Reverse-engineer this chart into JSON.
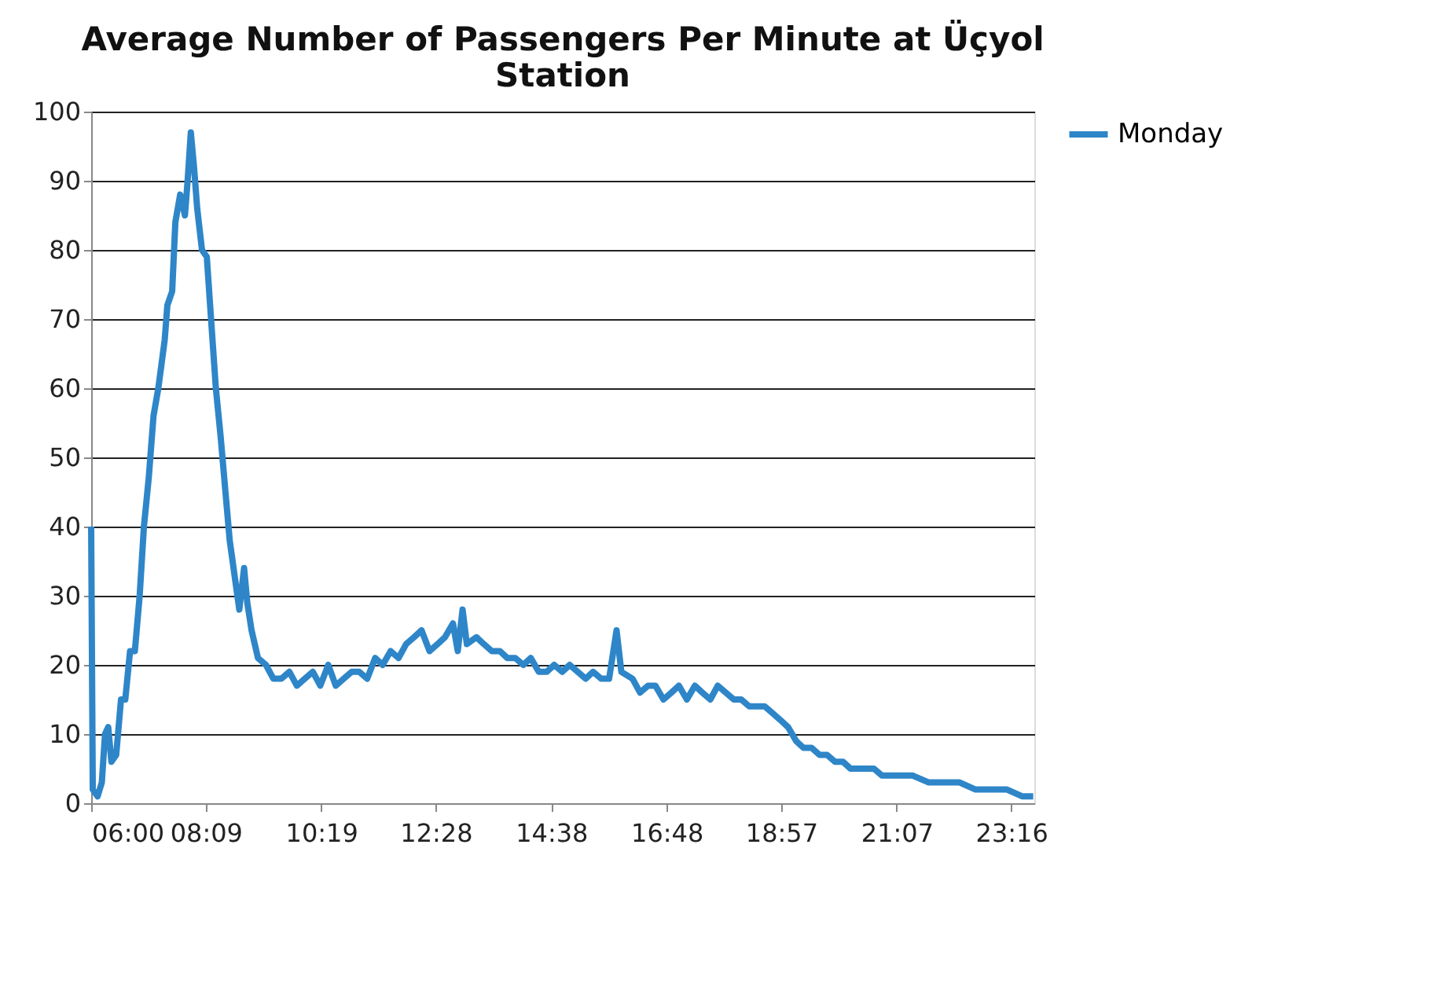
{
  "chart_data": {
    "type": "line",
    "title": "Average Number of Passengers Per Minute at Üçyol Station",
    "x": [
      6.0,
      6.03,
      6.12,
      6.2,
      6.26,
      6.32,
      6.38,
      6.47,
      6.56,
      6.64,
      6.73,
      6.82,
      6.91,
      6.99,
      7.08,
      7.17,
      7.26,
      7.38,
      7.43,
      7.52,
      7.58,
      7.67,
      7.76,
      7.81,
      7.87,
      7.93,
      7.99,
      8.08,
      8.17,
      8.25,
      8.34,
      8.43,
      8.52,
      8.6,
      8.69,
      8.78,
      8.87,
      8.93,
      9.01,
      9.13,
      9.28,
      9.42,
      9.57,
      9.72,
      9.86,
      10.01,
      10.16,
      10.3,
      10.45,
      10.59,
      10.74,
      10.89,
      11.03,
      11.18,
      11.33,
      11.47,
      11.62,
      11.77,
      11.91,
      12.06,
      12.2,
      12.35,
      12.5,
      12.64,
      12.79,
      12.88,
      12.97,
      13.05,
      13.23,
      13.37,
      13.52,
      13.67,
      13.81,
      13.96,
      14.11,
      14.25,
      14.4,
      14.55,
      14.69,
      14.84,
      14.98,
      15.13,
      15.28,
      15.42,
      15.57,
      15.72,
      15.86,
      15.95,
      16.16,
      16.3,
      16.45,
      16.59,
      16.74,
      16.89,
      17.03,
      17.18,
      17.33,
      17.47,
      17.62,
      17.76,
      17.91,
      18.06,
      18.2,
      18.35,
      18.5,
      18.64,
      18.79,
      18.94,
      19.08,
      19.23,
      19.37,
      19.52,
      19.67,
      19.81,
      19.96,
      20.11,
      20.25,
      20.4,
      20.55,
      20.69,
      20.84,
      21.13,
      21.42,
      21.72,
      22.01,
      22.3,
      22.59,
      22.89,
      23.18,
      23.47,
      23.68
    ],
    "series": [
      {
        "name": "Monday",
        "color": "#2e86c8",
        "values": [
          40,
          2,
          1,
          3,
          10,
          11,
          6,
          7,
          15,
          15,
          22,
          22,
          30,
          40,
          47,
          56,
          60,
          67,
          72,
          74,
          84,
          88,
          85,
          90,
          97,
          92,
          86,
          80,
          79,
          70,
          60,
          53,
          45,
          38,
          33,
          28,
          34,
          29,
          25,
          21,
          20,
          18,
          18,
          19,
          17,
          18,
          19,
          17,
          20,
          17,
          18,
          19,
          19,
          18,
          21,
          20,
          22,
          21,
          23,
          24,
          25,
          22,
          23,
          24,
          26,
          22,
          28,
          23,
          24,
          23,
          22,
          22,
          21,
          21,
          20,
          21,
          19,
          19,
          20,
          19,
          20,
          19,
          18,
          19,
          18,
          18,
          25,
          19,
          18,
          16,
          17,
          17,
          15,
          16,
          17,
          15,
          17,
          16,
          15,
          17,
          16,
          15,
          15,
          14,
          14,
          14,
          13,
          12,
          11,
          9,
          8,
          8,
          7,
          7,
          6,
          6,
          5,
          5,
          5,
          5,
          4,
          4,
          4,
          3,
          3,
          3,
          2,
          2,
          2,
          1,
          1
        ]
      }
    ],
    "xlim": [
      6,
      23.7
    ],
    "xticks": [
      {
        "value": 6,
        "label": "06:00"
      },
      {
        "value": 8.15,
        "label": "08:09"
      },
      {
        "value": 10.3167,
        "label": "10:19"
      },
      {
        "value": 12.4667,
        "label": "12:28"
      },
      {
        "value": 14.6333,
        "label": "14:38"
      },
      {
        "value": 16.8,
        "label": "16:48"
      },
      {
        "value": 18.95,
        "label": "18:57"
      },
      {
        "value": 21.1167,
        "label": "21:07"
      },
      {
        "value": 23.2667,
        "label": "23:16"
      }
    ],
    "ylim": [
      0,
      100
    ],
    "yticks": [
      0,
      10,
      20,
      30,
      40,
      50,
      60,
      70,
      80,
      90,
      100
    ],
    "grid": "y",
    "legend": "right",
    "marker": "none",
    "line_style": "solid"
  }
}
